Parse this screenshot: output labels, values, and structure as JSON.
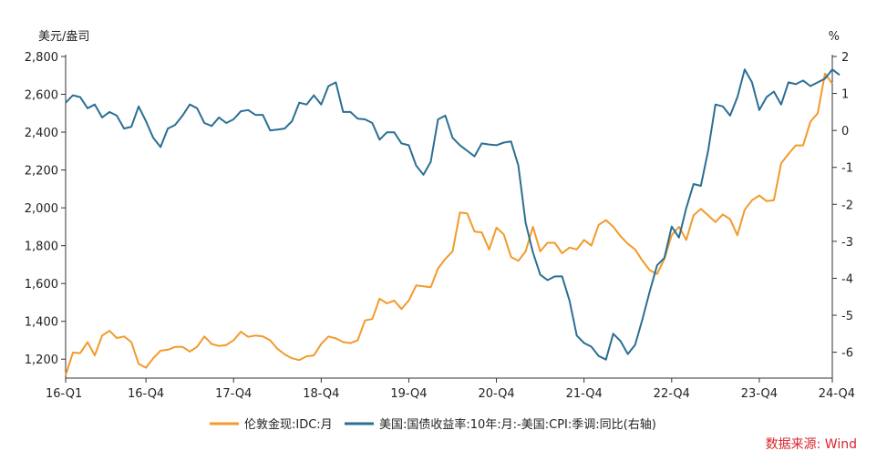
{
  "chart_data": {
    "type": "line",
    "y_left_unit": "美元/盎司",
    "y_right_unit": "%",
    "y_left_ticks": [
      "1,200",
      "1,400",
      "1,600",
      "1,800",
      "2,000",
      "2,200",
      "2,400",
      "2,600",
      "2,800"
    ],
    "y_right_ticks": [
      "-6",
      "-5",
      "-4",
      "-3",
      "-2",
      "-1",
      "0",
      "1",
      "2"
    ],
    "x_ticks": [
      "16-Q1",
      "16-Q4",
      "17-Q4",
      "18-Q4",
      "19-Q4",
      "20-Q4",
      "21-Q4",
      "22-Q4",
      "23-Q4",
      "24-Q4"
    ],
    "ylim_left": [
      1100,
      2800
    ],
    "ylim_right": [
      -6.7,
      2
    ],
    "xlim": [
      0,
      105
    ],
    "source": "数据来源: Wind",
    "colors": {
      "gold": "#f39a2b",
      "yield": "#2b6f93",
      "source": "#d9262c"
    },
    "series": [
      {
        "name": "伦敦金现:IDC:月",
        "axis": "left",
        "color": "#f39a2b",
        "points": [
          [
            0,
            1115
          ],
          [
            1,
            1235
          ],
          [
            2,
            1232
          ],
          [
            3,
            1290
          ],
          [
            4,
            1220
          ],
          [
            5,
            1325
          ],
          [
            6,
            1350
          ],
          [
            7,
            1312
          ],
          [
            8,
            1320
          ],
          [
            9,
            1290
          ],
          [
            10,
            1175
          ],
          [
            11,
            1155
          ],
          [
            12,
            1205
          ],
          [
            13,
            1245
          ],
          [
            14,
            1250
          ],
          [
            15,
            1265
          ],
          [
            16,
            1265
          ],
          [
            17,
            1240
          ],
          [
            18,
            1265
          ],
          [
            19,
            1320
          ],
          [
            20,
            1280
          ],
          [
            21,
            1270
          ],
          [
            22,
            1275
          ],
          [
            23,
            1300
          ],
          [
            24,
            1345
          ],
          [
            25,
            1318
          ],
          [
            26,
            1325
          ],
          [
            27,
            1320
          ],
          [
            28,
            1300
          ],
          [
            29,
            1255
          ],
          [
            30,
            1225
          ],
          [
            31,
            1205
          ],
          [
            32,
            1195
          ],
          [
            33,
            1215
          ],
          [
            34,
            1220
          ],
          [
            35,
            1280
          ],
          [
            36,
            1320
          ],
          [
            37,
            1310
          ],
          [
            38,
            1290
          ],
          [
            39,
            1285
          ],
          [
            40,
            1300
          ],
          [
            41,
            1405
          ],
          [
            42,
            1412
          ],
          [
            43,
            1520
          ],
          [
            44,
            1495
          ],
          [
            45,
            1510
          ],
          [
            46,
            1465
          ],
          [
            47,
            1510
          ],
          [
            48,
            1590
          ],
          [
            49,
            1585
          ],
          [
            50,
            1580
          ],
          [
            51,
            1680
          ],
          [
            52,
            1730
          ],
          [
            53,
            1770
          ],
          [
            54,
            1975
          ],
          [
            55,
            1970
          ],
          [
            56,
            1875
          ],
          [
            57,
            1870
          ],
          [
            58,
            1780
          ],
          [
            59,
            1895
          ],
          [
            60,
            1860
          ],
          [
            61,
            1740
          ],
          [
            62,
            1720
          ],
          [
            63,
            1770
          ],
          [
            64,
            1900
          ],
          [
            65,
            1770
          ],
          [
            66,
            1815
          ],
          [
            67,
            1815
          ],
          [
            68,
            1760
          ],
          [
            69,
            1790
          ],
          [
            70,
            1780
          ],
          [
            71,
            1830
          ],
          [
            72,
            1800
          ],
          [
            73,
            1910
          ],
          [
            74,
            1935
          ],
          [
            75,
            1900
          ],
          [
            76,
            1850
          ],
          [
            77,
            1810
          ],
          [
            78,
            1780
          ],
          [
            79,
            1720
          ],
          [
            80,
            1670
          ],
          [
            81,
            1650
          ],
          [
            82,
            1730
          ],
          [
            83,
            1855
          ],
          [
            84,
            1900
          ],
          [
            85,
            1830
          ],
          [
            86,
            1960
          ],
          [
            87,
            1995
          ],
          [
            88,
            1960
          ],
          [
            89,
            1925
          ],
          [
            90,
            1965
          ],
          [
            91,
            1940
          ],
          [
            92,
            1855
          ],
          [
            93,
            1990
          ],
          [
            94,
            2040
          ],
          [
            95,
            2065
          ],
          [
            96,
            2035
          ],
          [
            97,
            2040
          ],
          [
            98,
            2235
          ],
          [
            99,
            2285
          ],
          [
            100,
            2330
          ],
          [
            101,
            2330
          ],
          [
            102,
            2455
          ],
          [
            103,
            2500
          ],
          [
            104,
            2710
          ],
          [
            105,
            2655
          ]
        ]
      },
      {
        "name": "美国:国债收益率:10年:月:-美国:CPI:季调:同比(右轴)",
        "axis": "right",
        "color": "#2b6f93",
        "points": [
          [
            0,
            0.75
          ],
          [
            1,
            0.95
          ],
          [
            2,
            0.9
          ],
          [
            3,
            0.6
          ],
          [
            4,
            0.7
          ],
          [
            5,
            0.35
          ],
          [
            6,
            0.5
          ],
          [
            7,
            0.4
          ],
          [
            8,
            0.05
          ],
          [
            9,
            0.1
          ],
          [
            10,
            0.65
          ],
          [
            11,
            0.25
          ],
          [
            12,
            -0.2
          ],
          [
            13,
            -0.45
          ],
          [
            14,
            0.05
          ],
          [
            15,
            0.15
          ],
          [
            16,
            0.4
          ],
          [
            17,
            0.7
          ],
          [
            18,
            0.6
          ],
          [
            19,
            0.2
          ],
          [
            20,
            0.12
          ],
          [
            21,
            0.35
          ],
          [
            22,
            0.2
          ],
          [
            23,
            0.3
          ],
          [
            24,
            0.52
          ],
          [
            25,
            0.55
          ],
          [
            26,
            0.42
          ],
          [
            27,
            0.42
          ],
          [
            28,
            0.0
          ],
          [
            29,
            0.02
          ],
          [
            30,
            0.05
          ],
          [
            31,
            0.25
          ],
          [
            32,
            0.75
          ],
          [
            33,
            0.7
          ],
          [
            34,
            0.95
          ],
          [
            35,
            0.7
          ],
          [
            36,
            1.2
          ],
          [
            37,
            1.3
          ],
          [
            38,
            0.5
          ],
          [
            39,
            0.5
          ],
          [
            40,
            0.32
          ],
          [
            41,
            0.3
          ],
          [
            42,
            0.2
          ],
          [
            43,
            -0.25
          ],
          [
            44,
            -0.05
          ],
          [
            45,
            -0.05
          ],
          [
            46,
            -0.35
          ],
          [
            47,
            -0.4
          ],
          [
            48,
            -0.95
          ],
          [
            49,
            -1.2
          ],
          [
            50,
            -0.85
          ],
          [
            51,
            0.3
          ],
          [
            52,
            0.4
          ],
          [
            53,
            -0.2
          ],
          [
            54,
            -0.4
          ],
          [
            55,
            -0.55
          ],
          [
            56,
            -0.7
          ],
          [
            57,
            -0.35
          ],
          [
            58,
            -0.38
          ],
          [
            59,
            -0.4
          ],
          [
            60,
            -0.33
          ],
          [
            61,
            -0.3
          ],
          [
            62,
            -0.95
          ],
          [
            63,
            -2.5
          ],
          [
            64,
            -3.3
          ],
          [
            65,
            -3.9
          ],
          [
            66,
            -4.05
          ],
          [
            67,
            -3.95
          ],
          [
            68,
            -3.95
          ],
          [
            69,
            -4.6
          ],
          [
            70,
            -5.55
          ],
          [
            71,
            -5.75
          ],
          [
            72,
            -5.85
          ],
          [
            73,
            -6.1
          ],
          [
            74,
            -6.2
          ],
          [
            75,
            -5.5
          ],
          [
            76,
            -5.7
          ],
          [
            77,
            -6.05
          ],
          [
            78,
            -5.8
          ],
          [
            79,
            -5.1
          ],
          [
            80,
            -4.35
          ],
          [
            81,
            -3.65
          ],
          [
            82,
            -3.45
          ],
          [
            83,
            -2.6
          ],
          [
            84,
            -2.9
          ],
          [
            85,
            -2.1
          ],
          [
            86,
            -1.45
          ],
          [
            87,
            -1.5
          ],
          [
            88,
            -0.55
          ],
          [
            89,
            0.7
          ],
          [
            90,
            0.65
          ],
          [
            91,
            0.4
          ],
          [
            92,
            0.9
          ],
          [
            93,
            1.65
          ],
          [
            94,
            1.3
          ],
          [
            95,
            0.55
          ],
          [
            96,
            0.9
          ],
          [
            97,
            1.05
          ],
          [
            98,
            0.7
          ],
          [
            99,
            1.3
          ],
          [
            100,
            1.25
          ],
          [
            101,
            1.35
          ],
          [
            102,
            1.2
          ],
          [
            103,
            1.3
          ],
          [
            104,
            1.4
          ],
          [
            105,
            1.65
          ],
          [
            106,
            1.5
          ]
        ]
      }
    ]
  }
}
